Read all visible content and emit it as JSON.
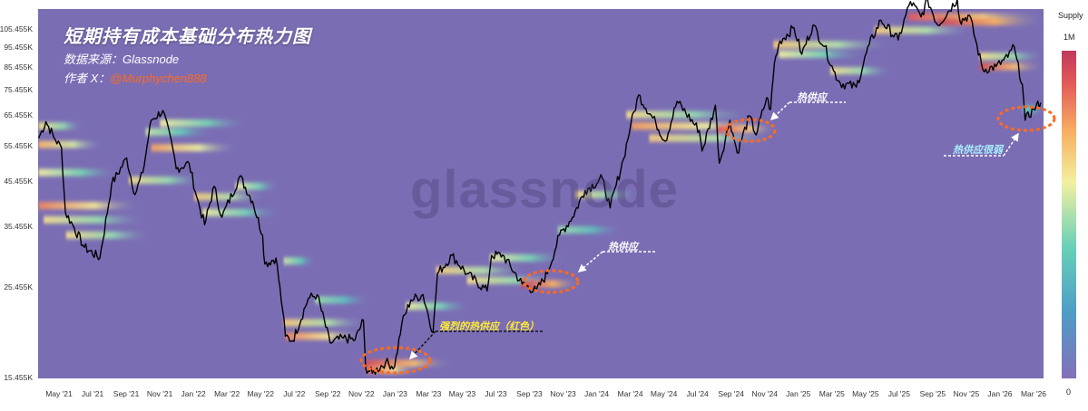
{
  "title": "短期持有成本基础分布热力图",
  "source": "数据来源：Glassnode",
  "author_label": "作者 X：",
  "author_handle": "@Murphychen888",
  "watermark": "glassnode",
  "annotations": {
    "strong_red": "强烈的热供应（红色）",
    "hot_supply_1": "热供应",
    "hot_supply_2": "热供应",
    "hot_supply_weak": "热供应很弱"
  },
  "colorbar": {
    "label": "Supply",
    "max": "1M",
    "min": "0",
    "colors": [
      "#8470b8",
      "#4e9cc7",
      "#68d0b8",
      "#f3f0a0",
      "#f8b062",
      "#e35a5a",
      "#c0395b"
    ]
  },
  "colors": {
    "background": "#7b6db4",
    "line": "#000000",
    "highlight_circle": "#ff6a1f"
  },
  "chart_data": {
    "type": "heatmap",
    "title": "短期持有成本基础分布热力图",
    "x_tick_labels": [
      "May '21",
      "Jul '21",
      "Sep '21",
      "Nov '21",
      "Jan '22",
      "Mar '22",
      "May '22",
      "Jul '22",
      "Sep '22",
      "Nov '22",
      "Jan '23",
      "Mar '23",
      "May '23",
      "Jul '23",
      "Sep '23",
      "Nov '23",
      "Jan '24",
      "Mar '24",
      "May '24",
      "Jul '24",
      "Sep '24",
      "Nov '24",
      "Jan '25",
      "Mar '25",
      "May '25",
      "Jul '25",
      "Sep '25",
      "Nov '25",
      "Jan '26",
      "Mar '26"
    ],
    "y_tick_labels": [
      "105.455K",
      "95.455K",
      "85.455K",
      "75.455K",
      "65.455K",
      "55.455K",
      "45.455K",
      "35.455K",
      "25.455K",
      "15.455K"
    ],
    "y_scale": "log",
    "y_range": [
      15455,
      118000
    ],
    "x_range": [
      "2021-03-31",
      "2026-03-10"
    ],
    "price_series": {
      "name": "BTC",
      "dates": [
        "2021-04-01",
        "2021-04-14",
        "2021-05-01",
        "2021-05-12",
        "2021-05-19",
        "2021-06-01",
        "2021-06-22",
        "2021-07-20",
        "2021-08-10",
        "2021-09-06",
        "2021-09-21",
        "2021-10-05",
        "2021-10-20",
        "2021-11-10",
        "2021-11-28",
        "2021-12-04",
        "2021-12-27",
        "2022-01-10",
        "2022-01-24",
        "2022-02-10",
        "2022-02-24",
        "2022-03-28",
        "2022-04-20",
        "2022-05-08",
        "2022-05-12",
        "2022-06-01",
        "2022-06-13",
        "2022-06-18",
        "2022-07-01",
        "2022-07-29",
        "2022-08-14",
        "2022-09-06",
        "2022-09-30",
        "2022-10-21",
        "2022-11-05",
        "2022-11-09",
        "2022-11-21",
        "2022-12-15",
        "2022-12-31",
        "2023-01-13",
        "2023-01-29",
        "2023-02-20",
        "2023-03-10",
        "2023-03-18",
        "2023-04-13",
        "2023-05-10",
        "2023-06-15",
        "2023-06-23",
        "2023-07-13",
        "2023-08-17",
        "2023-09-11",
        "2023-10-01",
        "2023-10-23",
        "2023-11-15",
        "2023-12-08",
        "2024-01-08",
        "2024-01-22",
        "2024-02-15",
        "2024-02-28",
        "2024-03-13",
        "2024-04-13",
        "2024-04-30",
        "2024-05-21",
        "2024-06-30",
        "2024-07-05",
        "2024-07-29",
        "2024-08-05",
        "2024-08-24",
        "2024-09-06",
        "2024-09-28",
        "2024-10-10",
        "2024-10-29",
        "2024-11-05",
        "2024-11-12",
        "2024-11-22",
        "2024-12-17",
        "2024-12-31",
        "2025-01-20",
        "2025-02-10",
        "2025-02-26",
        "2025-03-10",
        "2025-04-08",
        "2025-05-01",
        "2025-05-22",
        "2025-06-22",
        "2025-07-14",
        "2025-08-02",
        "2025-08-14",
        "2025-09-01",
        "2025-10-06",
        "2025-10-11",
        "2025-10-28",
        "2025-11-21",
        "2025-12-15",
        "2026-01-05",
        "2026-01-14",
        "2026-01-31",
        "2026-02-05",
        "2026-02-20",
        "2026-03-05"
      ],
      "values": [
        58000,
        63500,
        57500,
        55000,
        38500,
        36000,
        31800,
        30000,
        45000,
        52000,
        42500,
        48000,
        64000,
        67500,
        54500,
        49000,
        50500,
        41900,
        36000,
        44500,
        37500,
        47000,
        41000,
        34000,
        29000,
        30000,
        22500,
        19500,
        19000,
        24000,
        24500,
        18800,
        19300,
        19100,
        21300,
        16400,
        15900,
        16900,
        16500,
        20900,
        23800,
        24500,
        19900,
        27500,
        30400,
        27500,
        25000,
        30400,
        30500,
        26000,
        25000,
        27500,
        34000,
        37500,
        43500,
        46500,
        39500,
        51800,
        62500,
        73500,
        63000,
        57000,
        71000,
        60500,
        54000,
        69500,
        50500,
        64000,
        53500,
        65500,
        59000,
        72500,
        67800,
        88000,
        99000,
        106500,
        92000,
        108000,
        96000,
        84000,
        78500,
        76800,
        97000,
        111000,
        99500,
        123000,
        113000,
        124000,
        108000,
        124500,
        110500,
        114000,
        84500,
        86000,
        90500,
        97000,
        78000,
        64000,
        68000,
        70500
      ]
    },
    "supply_bands": [
      {
        "start": "2021-04-01",
        "end": "2021-06-20",
        "price": 62000,
        "intensity": 0.55
      },
      {
        "start": "2021-04-01",
        "end": "2021-07-25",
        "price": 56000,
        "intensity": 0.65
      },
      {
        "start": "2021-04-01",
        "end": "2021-08-20",
        "price": 48000,
        "intensity": 0.5
      },
      {
        "start": "2021-04-01",
        "end": "2021-09-30",
        "price": 40000,
        "intensity": 0.75
      },
      {
        "start": "2021-04-10",
        "end": "2021-10-10",
        "price": 37000,
        "intensity": 0.55
      },
      {
        "start": "2021-05-20",
        "end": "2021-10-20",
        "price": 34000,
        "intensity": 0.55
      },
      {
        "start": "2021-09-10",
        "end": "2022-01-20",
        "price": 46000,
        "intensity": 0.55
      },
      {
        "start": "2021-10-10",
        "end": "2022-02-05",
        "price": 60000,
        "intensity": 0.45
      },
      {
        "start": "2021-10-20",
        "end": "2022-03-25",
        "price": 55000,
        "intensity": 0.7
      },
      {
        "start": "2021-11-05",
        "end": "2022-04-10",
        "price": 63000,
        "intensity": 0.5
      },
      {
        "start": "2022-01-05",
        "end": "2022-05-10",
        "price": 42000,
        "intensity": 0.6
      },
      {
        "start": "2022-01-20",
        "end": "2022-06-10",
        "price": 38500,
        "intensity": 0.5
      },
      {
        "start": "2022-03-20",
        "end": "2022-06-05",
        "price": 44500,
        "intensity": 0.5
      },
      {
        "start": "2022-06-15",
        "end": "2022-08-10",
        "price": 29500,
        "intensity": 0.45
      },
      {
        "start": "2022-06-15",
        "end": "2022-11-10",
        "price": 21000,
        "intensity": 0.6
      },
      {
        "start": "2022-06-18",
        "end": "2022-11-05",
        "price": 19500,
        "intensity": 0.75
      },
      {
        "start": "2022-08-10",
        "end": "2022-11-15",
        "price": 23800,
        "intensity": 0.4
      },
      {
        "start": "2022-11-10",
        "end": "2023-04-15",
        "price": 16800,
        "intensity": 0.9
      },
      {
        "start": "2022-11-10",
        "end": "2023-02-10",
        "price": 16200,
        "intensity": 0.8
      },
      {
        "start": "2023-01-20",
        "end": "2023-05-15",
        "price": 23000,
        "intensity": 0.5
      },
      {
        "start": "2023-03-15",
        "end": "2023-08-20",
        "price": 28000,
        "intensity": 0.6
      },
      {
        "start": "2023-05-10",
        "end": "2023-10-20",
        "price": 26500,
        "intensity": 0.55
      },
      {
        "start": "2023-06-20",
        "end": "2023-11-01",
        "price": 30000,
        "intensity": 0.5
      },
      {
        "start": "2023-08-15",
        "end": "2023-11-30",
        "price": 26000,
        "intensity": 0.95
      },
      {
        "start": "2023-10-20",
        "end": "2024-02-10",
        "price": 35000,
        "intensity": 0.4
      },
      {
        "start": "2023-11-20",
        "end": "2024-03-10",
        "price": 42500,
        "intensity": 0.55
      },
      {
        "start": "2024-02-20",
        "end": "2024-09-30",
        "price": 66000,
        "intensity": 0.55
      },
      {
        "start": "2024-03-01",
        "end": "2024-10-30",
        "price": 62000,
        "intensity": 0.7
      },
      {
        "start": "2024-04-01",
        "end": "2024-11-10",
        "price": 58000,
        "intensity": 0.6
      },
      {
        "start": "2024-08-01",
        "end": "2024-11-15",
        "price": 61000,
        "intensity": 0.85
      },
      {
        "start": "2024-11-10",
        "end": "2025-06-10",
        "price": 97000,
        "intensity": 0.6
      },
      {
        "start": "2024-11-20",
        "end": "2025-04-20",
        "price": 92000,
        "intensity": 0.5
      },
      {
        "start": "2025-02-20",
        "end": "2025-06-10",
        "price": 84000,
        "intensity": 0.55
      },
      {
        "start": "2025-05-10",
        "end": "2025-11-01",
        "price": 105000,
        "intensity": 0.6
      },
      {
        "start": "2025-07-10",
        "end": "2026-03-10",
        "price": 113000,
        "intensity": 0.85
      },
      {
        "start": "2025-09-01",
        "end": "2026-03-10",
        "price": 110000,
        "intensity": 0.95
      },
      {
        "start": "2025-11-15",
        "end": "2026-03-10",
        "price": 86000,
        "intensity": 0.9
      },
      {
        "start": "2025-11-15",
        "end": "2026-03-10",
        "price": 91000,
        "intensity": 0.55
      },
      {
        "start": "2026-02-01",
        "end": "2026-03-10",
        "price": 68000,
        "intensity": 0.35
      }
    ]
  }
}
